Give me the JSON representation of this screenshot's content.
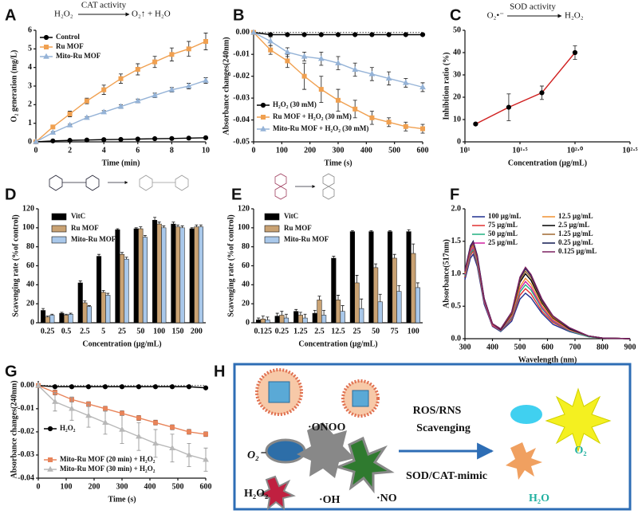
{
  "chart_data": [
    {
      "type": "line",
      "panel": "A",
      "annotations": [
        "H₂O₂",
        "CAT activity",
        "O₂↑ + H₂O"
      ],
      "xlabel": "Time (min)",
      "ylabel": "O₂ generation (mg/L)",
      "x": [
        0,
        1,
        2,
        3,
        4,
        5,
        6,
        7,
        8,
        9,
        10
      ],
      "xlim": [
        0,
        10
      ],
      "xticks": [
        0,
        2,
        4,
        6,
        8,
        10
      ],
      "ylim": [
        0,
        6
      ],
      "yticks": [
        0,
        1,
        2,
        3,
        4,
        5,
        6
      ],
      "series": [
        {
          "name": "Control",
          "color": "#000000",
          "marker": "circle",
          "values": [
            0,
            0.05,
            0.08,
            0.1,
            0.12,
            0.13,
            0.15,
            0.17,
            0.18,
            0.2,
            0.22
          ]
        },
        {
          "name": "Ru MOF",
          "color": "#f0a050",
          "marker": "square",
          "values": [
            0,
            0.8,
            1.5,
            2.2,
            2.8,
            3.4,
            3.9,
            4.3,
            4.7,
            5.0,
            5.4
          ],
          "errors": [
            0,
            0.08,
            0.15,
            0.15,
            0.25,
            0.25,
            0.3,
            0.3,
            0.35,
            0.4,
            0.45
          ]
        },
        {
          "name": "Mito-Ru MOF",
          "color": "#95b3d7",
          "marker": "triangle",
          "values": [
            0,
            0.5,
            0.9,
            1.3,
            1.6,
            1.9,
            2.2,
            2.5,
            2.8,
            3.0,
            3.3
          ],
          "errors": [
            0,
            0.05,
            0.05,
            0.06,
            0.08,
            0.1,
            0.1,
            0.12,
            0.12,
            0.15,
            0.15
          ]
        }
      ]
    },
    {
      "type": "line",
      "panel": "B",
      "xlabel": "Time (s)",
      "ylabel": "Absorbance changes(240nm)",
      "zero_line": true,
      "x": [
        0,
        60,
        120,
        180,
        240,
        300,
        360,
        420,
        480,
        540,
        600
      ],
      "xlim": [
        0,
        600
      ],
      "xticks": [
        0,
        100,
        200,
        300,
        400,
        500,
        600
      ],
      "ylim": [
        -0.05,
        0.001
      ],
      "yticks": [
        {
          "value": 0,
          "label": "0.00"
        },
        -0.01,
        -0.02,
        -0.03,
        -0.04,
        -0.05
      ],
      "series": [
        {
          "name": "H₂O₂ (30 mM)",
          "color": "#000000",
          "marker": "circle",
          "values": [
            0,
            -0.001,
            -0.001,
            -0.001,
            -0.001,
            -0.001,
            -0.001,
            -0.001,
            -0.001,
            -0.001,
            -0.001
          ]
        },
        {
          "name": "Ru MOF + H₂O₂ (30 mM)",
          "color": "#f0a050",
          "marker": "square",
          "values": [
            0,
            -0.008,
            -0.013,
            -0.02,
            -0.026,
            -0.031,
            -0.035,
            -0.039,
            -0.041,
            -0.043,
            -0.044
          ],
          "errors": [
            0,
            0.002,
            0.003,
            0.006,
            0.006,
            0.005,
            0.004,
            0.003,
            0.002,
            0.002,
            0.002
          ]
        },
        {
          "name": "Mito-Ru MOF + H₂O₂ (30 mM)",
          "color": "#95b3d7",
          "marker": "triangle",
          "values": [
            0,
            -0.004,
            -0.009,
            -0.011,
            -0.012,
            -0.014,
            -0.017,
            -0.019,
            -0.021,
            -0.023,
            -0.025
          ],
          "errors": [
            0,
            0.002,
            0.002,
            0.002,
            0.003,
            0.003,
            0.003,
            0.003,
            0.003,
            0.002,
            0.002
          ]
        }
      ]
    },
    {
      "type": "line",
      "panel": "C",
      "annotations": [
        "O₂•⁻",
        "SOD activity",
        "H₂O₂"
      ],
      "xlabel": "Concentration (μg/mL)",
      "ylabel": "Inhibition ratio (%)",
      "xscale": "log",
      "x": [
        12.5,
        25,
        50,
        100
      ],
      "xlim": [
        10,
        316.23
      ],
      "xticks": [
        {
          "value": 10,
          "label": "10¹"
        },
        {
          "value": 31.62,
          "label": "10¹·⁵"
        },
        {
          "value": 100,
          "label": "10²·⁰"
        },
        {
          "value": 316.23,
          "label": "10²·⁵"
        }
      ],
      "ylim": [
        0,
        50
      ],
      "yticks": [
        0,
        10,
        20,
        30,
        40,
        50
      ],
      "series": [
        {
          "color": "#000000",
          "line_color": "#d02020",
          "marker": "circle",
          "values": [
            8,
            15.5,
            22,
            40
          ],
          "errors": [
            0.5,
            6,
            3,
            3
          ]
        }
      ]
    },
    {
      "type": "bar",
      "panel": "D",
      "xlabel": "Concentration (μg/mL)",
      "ylabel": "Scavenging rate (%of control)",
      "categories": [
        "0.25",
        "0.5",
        "2.5",
        "5",
        "25",
        "50",
        "100",
        "150",
        "200"
      ],
      "ylim": [
        0,
        120
      ],
      "yticks": [
        0,
        20,
        40,
        60,
        80,
        100,
        120
      ],
      "series": [
        {
          "name": "VitC",
          "color": "#000000",
          "values": [
            13,
            10,
            42,
            70,
            98,
            99,
            108,
            104,
            99
          ],
          "errors": [
            2,
            1,
            2,
            2,
            1,
            1,
            3,
            2,
            1
          ]
        },
        {
          "name": "Ru MOF",
          "color": "#c9a273",
          "values": [
            6,
            8,
            21,
            32,
            72,
            99,
            104,
            101,
            101
          ],
          "errors": [
            1,
            1,
            2,
            2,
            2,
            2,
            2,
            2,
            2
          ]
        },
        {
          "name": "Mito-Ru MOF",
          "color": "#a9c8ea",
          "values": [
            8,
            9,
            17,
            29,
            67,
            90,
            100,
            100,
            101
          ],
          "errors": [
            1,
            1,
            1,
            2,
            2,
            2,
            2,
            2,
            2
          ]
        }
      ]
    },
    {
      "type": "bar",
      "panel": "E",
      "xlabel": "Concentration (μg/mL)",
      "ylabel": "Scavenging rate (%of control)",
      "categories": [
        "0.125",
        "0.25",
        "1.25",
        "2.5",
        "12.5",
        "25",
        "50",
        "75",
        "100"
      ],
      "ylim": [
        0,
        120
      ],
      "yticks": [
        0,
        20,
        40,
        60,
        80,
        100,
        120
      ],
      "series": [
        {
          "name": "VitC",
          "color": "#000000",
          "values": [
            3,
            7,
            12,
            10,
            68,
            96,
            96,
            96,
            96
          ],
          "errors": [
            2,
            3,
            2,
            3,
            2,
            1,
            1,
            1,
            2
          ]
        },
        {
          "name": "Ru MOF",
          "color": "#c9a273",
          "values": [
            4,
            8,
            8,
            24,
            24,
            42,
            58,
            68,
            73
          ],
          "errors": [
            3,
            4,
            3,
            4,
            5,
            8,
            4,
            4,
            10
          ]
        },
        {
          "name": "Mito-Ru MOF",
          "color": "#a9c8ea",
          "values": [
            3,
            5,
            5,
            8,
            12,
            15,
            22,
            33,
            37
          ],
          "errors": [
            3,
            4,
            4,
            5,
            6,
            10,
            8,
            6,
            5
          ]
        }
      ]
    },
    {
      "type": "line",
      "panel": "F",
      "xlabel": "Wavelength (nm)",
      "ylabel": "Absorbance(517nm)",
      "x": [
        300,
        320,
        330,
        345,
        370,
        400,
        430,
        470,
        500,
        520,
        540,
        580,
        620,
        680,
        750,
        800,
        900
      ],
      "xlim": [
        300,
        900
      ],
      "xticks": [
        300,
        400,
        500,
        600,
        700,
        800,
        900
      ],
      "ylim": [
        0,
        2
      ],
      "yticks": [
        {
          "value": 0,
          "label": "0.0"
        },
        0.5,
        {
          "value": 1,
          "label": "1.0"
        },
        1.5,
        {
          "value": 2,
          "label": "2.0"
        }
      ],
      "series": [
        {
          "name": "100 μg/mL",
          "color": "#1f2f8f",
          "values": [
            0.91,
            1.24,
            1.3,
            1.11,
            0.53,
            0.19,
            0.11,
            0.27,
            0.61,
            0.7,
            0.63,
            0.39,
            0.22,
            0.11,
            0.03,
            0.01,
            0
          ]
        },
        {
          "name": "75 μg/mL",
          "color": "#e03030",
          "values": [
            0.95,
            1.28,
            1.35,
            1.15,
            0.56,
            0.2,
            0.12,
            0.3,
            0.67,
            0.77,
            0.69,
            0.42,
            0.25,
            0.12,
            0.03,
            0.01,
            0
          ]
        },
        {
          "name": "50 μg/mL",
          "color": "#20b080",
          "values": [
            0.97,
            1.31,
            1.38,
            1.17,
            0.57,
            0.21,
            0.12,
            0.32,
            0.72,
            0.83,
            0.75,
            0.46,
            0.27,
            0.12,
            0.03,
            0.01,
            0
          ]
        },
        {
          "name": "25 μg/mL",
          "color": "#d020a0",
          "values": [
            0.99,
            1.34,
            1.41,
            1.2,
            0.58,
            0.21,
            0.13,
            0.34,
            0.76,
            0.88,
            0.79,
            0.48,
            0.28,
            0.13,
            0.04,
            0.01,
            0
          ]
        },
        {
          "name": "12.5 μg/mL",
          "color": "#f09030",
          "values": [
            1.01,
            1.37,
            1.44,
            1.22,
            0.6,
            0.22,
            0.14,
            0.36,
            0.8,
            0.93,
            0.84,
            0.51,
            0.3,
            0.14,
            0.04,
            0.01,
            0
          ]
        },
        {
          "name": "2.5 μg/mL",
          "color": "#000000",
          "values": [
            1.03,
            1.4,
            1.47,
            1.25,
            0.61,
            0.23,
            0.14,
            0.38,
            0.87,
            1.0,
            0.9,
            0.55,
            0.32,
            0.15,
            0.04,
            0.01,
            0
          ]
        },
        {
          "name": "1.25 μg/mL",
          "color": "#a06830",
          "values": [
            1.02,
            1.38,
            1.45,
            1.23,
            0.6,
            0.23,
            0.15,
            0.39,
            0.9,
            1.04,
            0.94,
            0.57,
            0.33,
            0.16,
            0.04,
            0.01,
            0
          ]
        },
        {
          "name": "0.25 μg/mL",
          "color": "#101850",
          "values": [
            1.05,
            1.43,
            1.5,
            1.28,
            0.62,
            0.23,
            0.15,
            0.41,
            0.93,
            1.08,
            0.97,
            0.59,
            0.35,
            0.16,
            0.04,
            0.01,
            0
          ]
        },
        {
          "name": "0.125 μg/mL",
          "color": "#7a2060",
          "values": [
            1.04,
            1.41,
            1.48,
            1.26,
            0.61,
            0.23,
            0.15,
            0.41,
            0.95,
            1.1,
            0.99,
            0.61,
            0.35,
            0.17,
            0.04,
            0.01,
            0
          ]
        }
      ]
    },
    {
      "type": "line",
      "panel": "G",
      "xlabel": "Time (s)",
      "ylabel": "Absorbance changes(240nm)",
      "zero_line": true,
      "x": [
        0,
        60,
        120,
        180,
        240,
        300,
        360,
        420,
        480,
        540,
        600
      ],
      "xlim": [
        0,
        600
      ],
      "xticks": [
        0,
        100,
        200,
        300,
        400,
        500,
        600
      ],
      "ylim": [
        -0.04,
        0.002
      ],
      "yticks": [
        {
          "value": 0,
          "label": "0.00"
        },
        -0.01,
        -0.02,
        -0.03,
        -0.04
      ],
      "series": [
        {
          "name": "H₂O₂",
          "color": "#000000",
          "marker": "circle",
          "values": [
            0,
            -0.0005,
            -0.0005,
            -0.0005,
            -0.0005,
            -0.0005,
            -0.0005,
            -0.0005,
            -0.0005,
            -0.0005,
            -0.001
          ]
        },
        {
          "name": "Mito-Ru MOF (20 min) + H₂O₂",
          "color": "#e8845a",
          "marker": "square",
          "values": [
            0,
            -0.003,
            -0.006,
            -0.008,
            -0.01,
            -0.012,
            -0.014,
            -0.016,
            -0.018,
            -0.02,
            -0.021
          ],
          "errors": [
            0,
            0.001,
            0.001,
            0.001,
            0.001,
            0.001,
            0.001,
            0.001,
            0.001,
            0.001,
            0.001
          ]
        },
        {
          "name": "Mito-Ru MOF (30 min) + H₂O₂",
          "color": "#b8b8b8",
          "marker": "triangle",
          "values": [
            0,
            -0.007,
            -0.01,
            -0.013,
            -0.016,
            -0.019,
            -0.022,
            -0.025,
            -0.027,
            -0.03,
            -0.032
          ],
          "errors": [
            0,
            0.004,
            0.005,
            0.005,
            0.005,
            0.006,
            0.006,
            0.006,
            0.006,
            0.005,
            0.005
          ]
        }
      ]
    }
  ],
  "diagram": {
    "panel": "H",
    "onoo": "·ONOO",
    "superoxide": "O₂⁻",
    "h2o2": "H₂O₂",
    "oh": "·OH",
    "no": "·NO",
    "line1": "ROS/RNS",
    "line2": "Scavenging",
    "mimic": "SOD/CAT-mimic",
    "o2": "O₂",
    "h2o": "H₂O"
  }
}
